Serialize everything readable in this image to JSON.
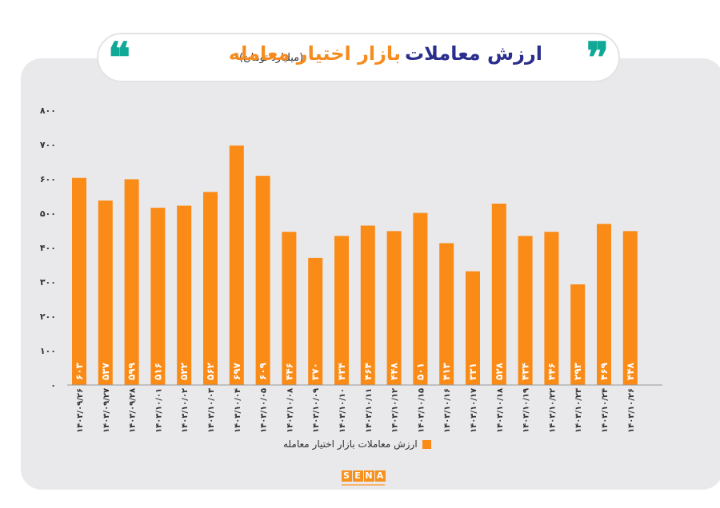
{
  "header": {
    "title_main": "ارزش معاملات",
    "title_accent": "بازار اختیار معامله",
    "subtitle": "(میلیارد تومان)",
    "quote_left": "❝",
    "quote_right": "❞"
  },
  "legend": {
    "label": "ارزش معاملات بازار اختیار معامله"
  },
  "logo": {
    "letters": [
      "S",
      "E",
      "N",
      "A"
    ]
  },
  "colors": {
    "bar": "#fb8b17",
    "title_main": "#2b2f8c",
    "title_accent": "#f68b1f",
    "quote": "#10a897",
    "panel": "#e9e8ea"
  },
  "chart_data": {
    "type": "bar",
    "title": "ارزش معاملات بازار اختیار معامله",
    "subtitle": "(میلیارد تومان)",
    "xlabel": "",
    "ylabel": "",
    "ylim": [
      0,
      800
    ],
    "y_ticks": [
      0,
      100,
      200,
      300,
      400,
      500,
      600,
      700,
      800
    ],
    "y_tick_labels": [
      "۰",
      "۱۰۰",
      "۲۰۰",
      "۳۰۰",
      "۴۰۰",
      "۵۰۰",
      "۶۰۰",
      "۷۰۰",
      "۸۰۰"
    ],
    "grid": false,
    "legend_position": "bottom",
    "categories": [
      "۱۴۰۳/۰۹/۲۶",
      "۱۴۰۳/۰۹/۲۷",
      "۱۴۰۳/۰۹/۲۸",
      "۱۴۰۳/۱۰/۰۱",
      "۱۴۰۳/۱۰/۰۲",
      "۱۴۰۳/۱۰/۰۳",
      "۱۴۰۳/۱۰/۰۴",
      "۱۴۰۳/۱۰/۰۵",
      "۱۴۰۳/۱۰/۰۸",
      "۱۴۰۳/۱۰/۰۹",
      "۱۴۰۳/۱۰/۱۰",
      "۱۴۰۳/۱۰/۱۱",
      "۱۴۰۳/۱۰/۱۲",
      "۱۴۰۳/۱۰/۱۵",
      "۱۴۰۳/۱۰/۱۶",
      "۱۴۰۳/۱۰/۱۷",
      "۱۴۰۳/۱۰/۱۸",
      "۱۴۰۳/۱۰/۱۹",
      "۱۴۰۳/۱۰/۲۲",
      "۱۴۰۳/۱۰/۲۳",
      "۱۴۰۳/۱۰/۲۴",
      "۱۴۰۳/۱۰/۲۶"
    ],
    "series": [
      {
        "name": "ارزش معاملات بازار اختیار معامله",
        "values": [
          603,
          537,
          599,
          516,
          522,
          562,
          697,
          609,
          446,
          370,
          434,
          464,
          448,
          501,
          413,
          331,
          528,
          434,
          446,
          293,
          469,
          448
        ],
        "labels": [
          "۶۰۳",
          "۵۳۷",
          "۵۹۹",
          "۵۱۶",
          "۵۲۲",
          "۵۶۲",
          "۶۹۷",
          "۶۰۹",
          "۴۴۶",
          "۳۷۰",
          "۴۳۴",
          "۴۶۴",
          "۴۴۸",
          "۵۰۱",
          "۴۱۳",
          "۳۳۱",
          "۵۲۸",
          "۴۳۴",
          "۴۴۶",
          "۲۹۳",
          "۴۶۹",
          "۴۴۸"
        ]
      }
    ]
  }
}
